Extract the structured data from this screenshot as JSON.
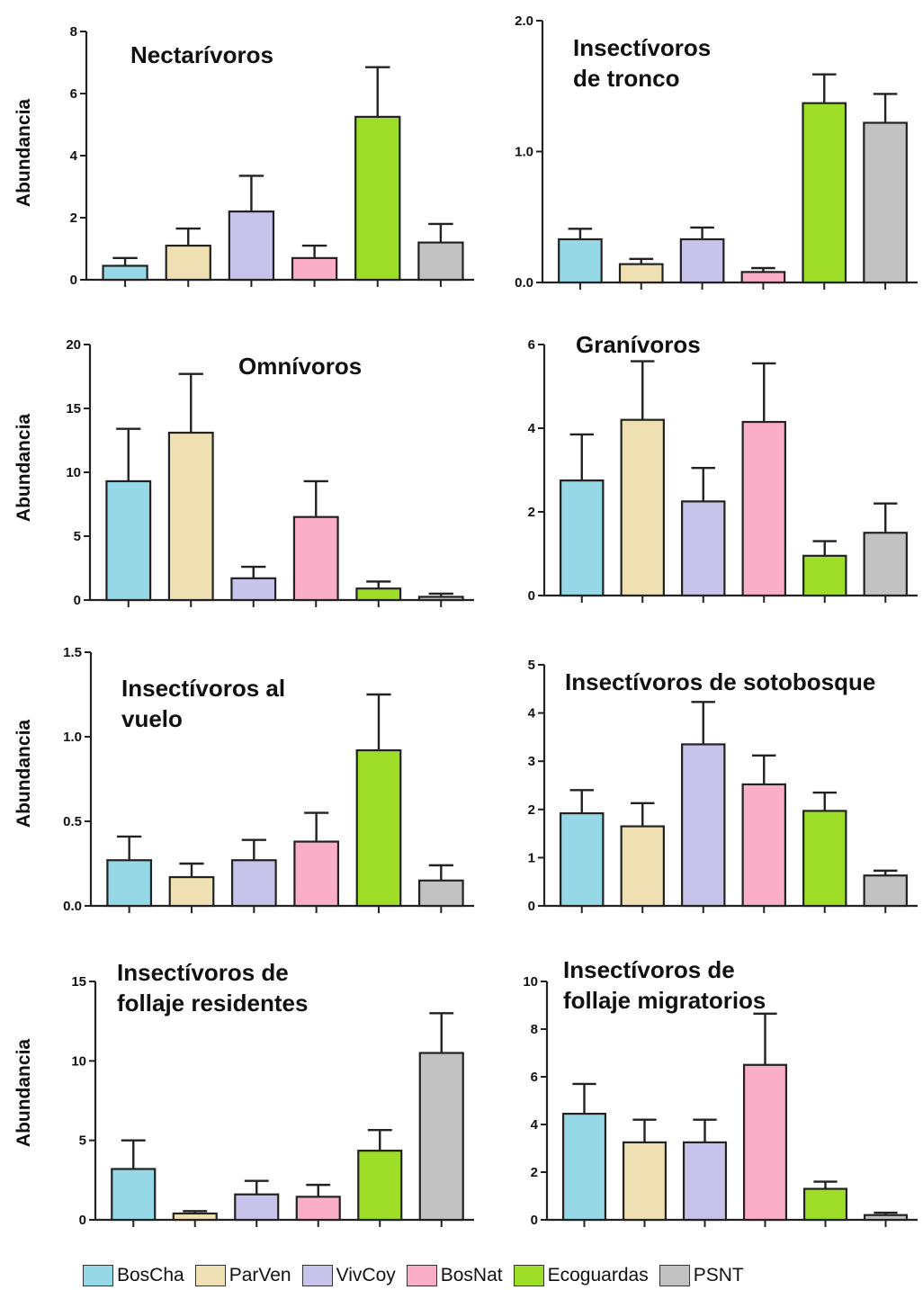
{
  "legend": [
    {
      "label": "BosCha",
      "color": "#96d8e6"
    },
    {
      "label": "ParVen",
      "color": "#efe0b3"
    },
    {
      "label": "VivCoy",
      "color": "#c8c3ea"
    },
    {
      "label": "BosNat",
      "color": "#fbaec8"
    },
    {
      "label": "Ecoguardas",
      "color": "#9ede28"
    },
    {
      "label": "PSNT",
      "color": "#c2c2c2"
    }
  ],
  "ylabel": "Abundancia",
  "chart_data": [
    {
      "type": "bar",
      "title_lines": [
        "Nectarívoros"
      ],
      "ylabel": "Abundancia",
      "ylim": [
        0,
        8
      ],
      "yticks": [
        "0",
        "2",
        "4",
        "6",
        "8"
      ],
      "values": [
        0.45,
        1.1,
        2.2,
        0.7,
        5.25,
        1.2
      ],
      "errors": [
        0.25,
        0.55,
        1.15,
        0.4,
        1.6,
        0.6
      ]
    },
    {
      "type": "bar",
      "title_lines": [
        "Insectívoros",
        "de tronco"
      ],
      "ylabel": "",
      "ylim": [
        0,
        2.0
      ],
      "yticks": [
        "0.0",
        "1.0",
        "2.0"
      ],
      "values": [
        0.33,
        0.14,
        0.33,
        0.08,
        1.37,
        1.22
      ],
      "errors": [
        0.08,
        0.04,
        0.09,
        0.03,
        0.22,
        0.22
      ]
    },
    {
      "type": "bar",
      "title_lines": [
        "Omnívoros"
      ],
      "ylabel": "Abundancia",
      "ylim": [
        0,
        20
      ],
      "yticks": [
        "0",
        "5",
        "10",
        "15",
        "20"
      ],
      "values": [
        9.3,
        13.1,
        1.7,
        6.5,
        0.9,
        0.25
      ],
      "errors": [
        4.1,
        4.6,
        0.9,
        2.8,
        0.55,
        0.25
      ]
    },
    {
      "type": "bar",
      "title_lines": [
        "Granívoros"
      ],
      "ylabel": "",
      "ylim": [
        0,
        6
      ],
      "yticks": [
        "0",
        "2",
        "4",
        "6"
      ],
      "values": [
        2.75,
        4.2,
        2.25,
        4.15,
        0.95,
        1.5
      ],
      "errors": [
        1.1,
        1.4,
        0.8,
        1.4,
        0.35,
        0.7
      ]
    },
    {
      "type": "bar",
      "title_lines": [
        "Insectívoros al",
        "vuelo"
      ],
      "ylabel": "Abundancia",
      "ylim": [
        0,
        1.5
      ],
      "yticks": [
        "0.0",
        "0.5",
        "1.0",
        "1.5"
      ],
      "values": [
        0.27,
        0.17,
        0.27,
        0.38,
        0.92,
        0.15
      ],
      "errors": [
        0.14,
        0.08,
        0.12,
        0.17,
        0.33,
        0.09
      ]
    },
    {
      "type": "bar",
      "title_lines": [
        "Insectívoros de sotobosque"
      ],
      "ylabel": "",
      "ylim": [
        0,
        5
      ],
      "yticks": [
        "0",
        "1",
        "2",
        "3",
        "4",
        "5"
      ],
      "values": [
        1.92,
        1.65,
        3.35,
        2.52,
        1.97,
        0.63
      ],
      "errors": [
        0.48,
        0.48,
        0.88,
        0.6,
        0.38,
        0.1
      ]
    },
    {
      "type": "bar",
      "title_lines": [
        "Insectívoros de",
        "follaje residentes"
      ],
      "ylabel": "Abundancia",
      "ylim": [
        0,
        15
      ],
      "yticks": [
        "0",
        "5",
        "10",
        "15"
      ],
      "values": [
        3.2,
        0.4,
        1.6,
        1.45,
        4.35,
        10.5
      ],
      "errors": [
        1.8,
        0.15,
        0.85,
        0.75,
        1.3,
        2.5
      ]
    },
    {
      "type": "bar",
      "title_lines": [
        "Insectívoros de",
        "follaje migratorios"
      ],
      "ylabel": "",
      "ylim": [
        0,
        10
      ],
      "yticks": [
        "0",
        "2",
        "4",
        "6",
        "8",
        "10"
      ],
      "values": [
        4.45,
        3.25,
        3.25,
        6.5,
        1.3,
        0.2
      ],
      "errors": [
        1.25,
        0.95,
        0.95,
        2.15,
        0.3,
        0.1
      ]
    }
  ]
}
